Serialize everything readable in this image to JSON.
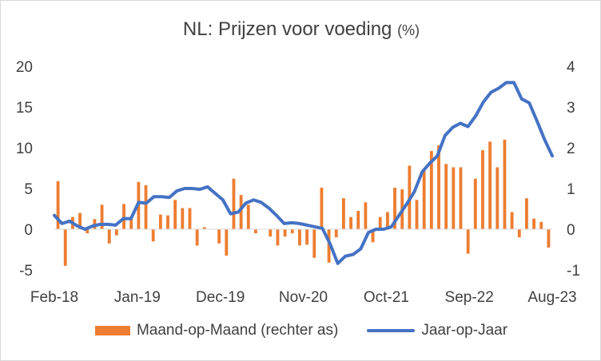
{
  "chart_data": {
    "type": "bar+line",
    "title": "NL: Prijzen voor voeding",
    "title_unit": "(%)",
    "x_tick_labels": [
      "Feb-18",
      "Jan-19",
      "Dec-19",
      "Nov-20",
      "Oct-21",
      "Sep-22",
      "Aug-23"
    ],
    "left_axis": {
      "min": -5,
      "max": 20,
      "ticks": [
        "20",
        "15",
        "10",
        "5",
        "0",
        "-5"
      ]
    },
    "right_axis": {
      "min": -1,
      "max": 4,
      "ticks": [
        "4",
        "3",
        "2",
        "1",
        "0",
        "-1"
      ]
    },
    "series": [
      {
        "name": "Maand-op-Maand (rechter as)",
        "type": "bar",
        "axis": "right",
        "color": "#ED7D31",
        "values": [
          1.18,
          -0.9,
          0.3,
          0.4,
          -0.1,
          0.25,
          0.6,
          -0.35,
          -0.15,
          0.62,
          0.3,
          1.16,
          1.08,
          -0.3,
          0.36,
          0.34,
          0.72,
          0.52,
          0.52,
          -0.4,
          0.05,
          0.0,
          -0.35,
          -0.65,
          1.24,
          0.84,
          0.6,
          -0.1,
          0.0,
          -0.18,
          -0.4,
          -0.18,
          -0.1,
          -0.4,
          -0.38,
          -0.7,
          1.02,
          -0.82,
          -0.2,
          0.76,
          0.3,
          0.45,
          0.66,
          -0.32,
          0.3,
          0.42,
          1.02,
          0.98,
          1.56,
          0.72,
          1.5,
          1.92,
          2.06,
          1.6,
          1.52,
          1.52,
          -0.6,
          1.24,
          1.94,
          2.15,
          1.52,
          2.2,
          0.42,
          -0.2,
          0.76,
          0.26,
          0.18,
          -0.45
        ]
      },
      {
        "name": "Jaar-op-Jaar",
        "type": "line",
        "axis": "left",
        "color": "#4472C4",
        "values": [
          1.7,
          0.7,
          1.0,
          0.4,
          0.0,
          0.4,
          0.6,
          0.6,
          0.5,
          1.3,
          1.3,
          3.3,
          3.2,
          4.0,
          4.0,
          3.9,
          4.7,
          5.0,
          5.0,
          4.9,
          5.2,
          4.4,
          3.6,
          1.9,
          2.1,
          3.2,
          3.6,
          3.3,
          2.6,
          1.7,
          0.7,
          0.8,
          0.7,
          0.5,
          0.3,
          0.1,
          -1.8,
          -4.2,
          -3.3,
          -3.1,
          -2.4,
          -0.4,
          0.0,
          0.0,
          0.3,
          1.7,
          3.1,
          4.6,
          7.0,
          8.1,
          9.0,
          11.5,
          12.5,
          13.0,
          12.6,
          13.9,
          15.6,
          16.8,
          17.3,
          18.0,
          18.0,
          16.0,
          15.5,
          13.3,
          11.0,
          9.0
        ]
      }
    ],
    "legend_position": "bottom",
    "grid": false
  }
}
